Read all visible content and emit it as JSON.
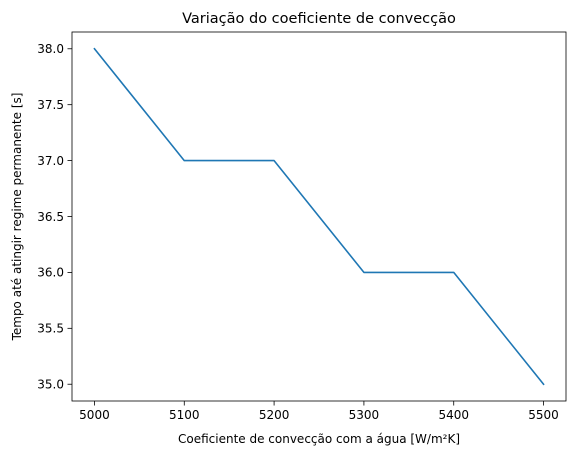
{
  "chart_data": {
    "type": "line",
    "title": "Variação do coeficiente de convecção",
    "xlabel": "Coeficiente de convecção com a água [W/m²K]",
    "ylabel": "Tempo até atingir regime permanente [s]",
    "xlim": [
      4975,
      5525
    ],
    "ylim": [
      34.85,
      38.15
    ],
    "grid": false,
    "legend": "none",
    "x_ticks": [
      5000,
      5100,
      5200,
      5300,
      5400,
      5500
    ],
    "x_tick_labels": [
      "5000",
      "5100",
      "5200",
      "5300",
      "5400",
      "5500"
    ],
    "y_ticks": [
      35.0,
      35.5,
      36.0,
      36.5,
      37.0,
      37.5,
      38.0
    ],
    "y_tick_labels": [
      "35.0",
      "35.5",
      "36.0",
      "36.5",
      "37.0",
      "37.5",
      "38.0"
    ],
    "series": [
      {
        "color": "#1f77b4",
        "x": [
          5000,
          5100,
          5200,
          5300,
          5400,
          5500
        ],
        "y": [
          38,
          37,
          37,
          36,
          36,
          35
        ]
      }
    ]
  }
}
